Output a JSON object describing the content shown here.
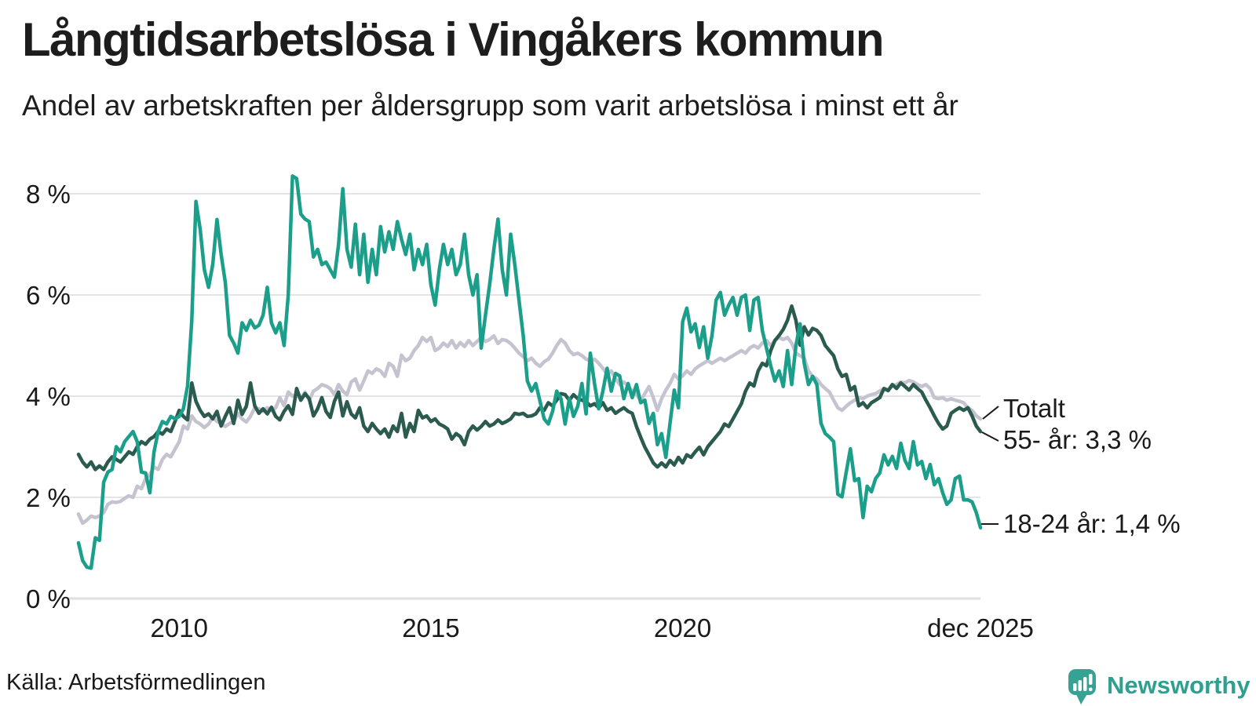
{
  "header": {
    "title": "Långtidsarbetslösa i Vingåkers kommun",
    "subtitle": "Andel av arbetskraften per åldersgrupp som varit arbetslösa i minst ett år"
  },
  "footer": {
    "source": "Källa: Arbetsförmedlingen",
    "brand": "Newsworthy"
  },
  "chart_data": {
    "type": "line",
    "title": "Långtidsarbetslösa i Vingåkers kommun",
    "subtitle": "Andel av arbetskraften per åldersgrupp som varit arbetslösa i minst ett år",
    "source": "Källa: Arbetsförmedlingen",
    "unit": "%",
    "frequency": "monthly",
    "x_start": "jan 2008",
    "x_end": "dec 2025",
    "ylim": [
      0,
      8.6
    ],
    "grid": true,
    "legend_position": "right-end-labels",
    "y_ticks": [
      {
        "value": 0,
        "label": "0 %"
      },
      {
        "value": 2,
        "label": "2 %"
      },
      {
        "value": 4,
        "label": "4 %"
      },
      {
        "value": 6,
        "label": "6 %"
      },
      {
        "value": 8,
        "label": "8 %"
      }
    ],
    "x_ticks": [
      {
        "month_index": 24,
        "label": "2010"
      },
      {
        "month_index": 84,
        "label": "2015"
      },
      {
        "month_index": 144,
        "label": "2020"
      },
      {
        "month_index": 215,
        "label": "dec 2025"
      }
    ],
    "series": [
      {
        "name": "Totalt",
        "end_label": "Totalt",
        "color": "#c6c3d1",
        "values": [
          1.67,
          1.49,
          1.55,
          1.63,
          1.6,
          1.63,
          1.7,
          1.86,
          1.91,
          1.9,
          1.92,
          1.98,
          2.03,
          2.0,
          2.22,
          2.17,
          2.37,
          2.45,
          2.6,
          2.55,
          2.75,
          2.85,
          2.8,
          2.95,
          3.1,
          3.41,
          3.35,
          3.61,
          3.5,
          3.45,
          3.38,
          3.45,
          3.58,
          3.5,
          3.46,
          3.4,
          3.46,
          3.5,
          3.66,
          3.55,
          3.49,
          3.6,
          3.77,
          3.75,
          3.7,
          3.77,
          3.72,
          3.77,
          3.97,
          3.81,
          4.08,
          4.0,
          4.02,
          3.95,
          4.08,
          3.92,
          4.1,
          4.15,
          4.23,
          4.2,
          4.15,
          4.03,
          4.23,
          4.1,
          4.03,
          4.28,
          4.34,
          4.12,
          4.3,
          4.5,
          4.45,
          4.54,
          4.5,
          4.39,
          4.65,
          4.59,
          4.39,
          4.81,
          4.7,
          4.75,
          4.9,
          5.0,
          5.16,
          5.08,
          5.16,
          4.9,
          4.95,
          5.05,
          4.98,
          5.1,
          4.95,
          5.06,
          4.98,
          5.1,
          5.0,
          5.08,
          5.16,
          5.08,
          5.12,
          5.19,
          5.04,
          5.12,
          5.1,
          5.04,
          4.95,
          4.85,
          4.78,
          4.7,
          4.75,
          4.65,
          4.59,
          4.68,
          4.73,
          4.85,
          5.0,
          5.12,
          5.05,
          4.9,
          4.82,
          4.85,
          4.8,
          4.73,
          4.7,
          4.73,
          4.65,
          4.55,
          4.43,
          4.5,
          4.35,
          4.23,
          4.28,
          4.2,
          4.1,
          4.03,
          3.92,
          4.05,
          4.19,
          3.97,
          3.72,
          3.95,
          4.12,
          4.25,
          4.43,
          4.34,
          4.4,
          4.5,
          4.43,
          4.54,
          4.6,
          4.65,
          4.7,
          4.65,
          4.7,
          4.75,
          4.7,
          4.75,
          4.8,
          4.85,
          4.9,
          4.85,
          4.95,
          5.0,
          4.95,
          5.05,
          5.1,
          5.0,
          5.1,
          5.16,
          5.12,
          5.16,
          5.05,
          4.85,
          4.8,
          4.75,
          4.5,
          4.39,
          4.34,
          4.23,
          4.15,
          4.08,
          3.92,
          3.77,
          3.72,
          3.8,
          3.87,
          3.92,
          3.97,
          3.95,
          4.0,
          4.03,
          4.05,
          4.1,
          4.15,
          4.12,
          4.2,
          4.23,
          4.28,
          4.26,
          4.31,
          4.28,
          4.23,
          4.19,
          4.23,
          4.15,
          3.97,
          3.95,
          3.97,
          3.92,
          3.95,
          3.92,
          3.9,
          3.87,
          3.77,
          3.72,
          3.61,
          3.55
        ]
      },
      {
        "name": "55- år",
        "end_label": "55- år: 3,3 %",
        "color": "#2b5a4e",
        "values": [
          2.85,
          2.7,
          2.6,
          2.7,
          2.55,
          2.62,
          2.55,
          2.7,
          2.8,
          2.75,
          2.7,
          2.8,
          2.9,
          2.85,
          3.0,
          3.1,
          3.05,
          3.15,
          3.2,
          3.3,
          3.25,
          3.35,
          3.3,
          3.5,
          3.72,
          3.6,
          3.53,
          4.26,
          3.9,
          3.72,
          3.6,
          3.65,
          3.55,
          3.7,
          3.41,
          3.6,
          3.77,
          3.46,
          3.92,
          3.64,
          3.8,
          4.26,
          3.81,
          3.66,
          3.75,
          3.65,
          3.78,
          3.6,
          3.53,
          3.7,
          3.81,
          3.64,
          4.15,
          3.92,
          4.05,
          3.95,
          3.61,
          3.75,
          3.97,
          3.7,
          3.58,
          3.9,
          4.08,
          3.61,
          3.89,
          3.65,
          3.57,
          3.77,
          3.41,
          3.3,
          3.46,
          3.35,
          3.26,
          3.35,
          3.19,
          3.41,
          3.3,
          3.66,
          3.19,
          3.46,
          3.3,
          3.72,
          3.57,
          3.61,
          3.5,
          3.55,
          3.45,
          3.41,
          3.35,
          3.15,
          3.26,
          3.2,
          3.04,
          3.3,
          3.41,
          3.33,
          3.4,
          3.5,
          3.41,
          3.45,
          3.53,
          3.46,
          3.5,
          3.55,
          3.66,
          3.64,
          3.66,
          3.6,
          3.61,
          3.65,
          3.77,
          3.72,
          3.87,
          3.81,
          3.92,
          4.05,
          4.03,
          3.92,
          4.03,
          3.95,
          3.92,
          3.89,
          3.81,
          3.85,
          3.77,
          3.87,
          3.72,
          3.77,
          3.66,
          3.72,
          3.77,
          3.7,
          3.66,
          3.4,
          3.19,
          2.99,
          2.84,
          2.68,
          2.6,
          2.68,
          2.6,
          2.73,
          2.64,
          2.79,
          2.68,
          2.84,
          2.79,
          2.9,
          2.99,
          2.84,
          3.0,
          3.1,
          3.2,
          3.3,
          3.45,
          3.4,
          3.55,
          3.7,
          3.85,
          4.1,
          4.26,
          4.2,
          4.5,
          4.65,
          4.6,
          4.9,
          5.1,
          5.2,
          5.32,
          5.5,
          5.78,
          5.5,
          5.01,
          5.37,
          5.21,
          5.34,
          5.3,
          5.2,
          5.0,
          4.9,
          4.8,
          4.54,
          4.39,
          4.43,
          4.12,
          4.19,
          3.81,
          3.87,
          3.77,
          3.87,
          3.92,
          3.97,
          4.15,
          4.11,
          4.23,
          4.15,
          4.26,
          4.19,
          4.12,
          4.23,
          4.15,
          4.08,
          3.92,
          3.77,
          3.61,
          3.46,
          3.35,
          3.41,
          3.66,
          3.72,
          3.77,
          3.72,
          3.77,
          3.61,
          3.41,
          3.3
        ]
      },
      {
        "name": "18-24 år",
        "end_label": "18-24 år: 1,4 %",
        "color": "#1b9e8a",
        "values": [
          1.1,
          0.75,
          0.62,
          0.6,
          1.2,
          1.15,
          2.3,
          2.5,
          2.55,
          3.0,
          2.9,
          3.1,
          3.2,
          3.3,
          3.1,
          2.5,
          2.48,
          2.09,
          2.9,
          3.3,
          3.5,
          3.45,
          3.6,
          3.55,
          3.6,
          3.75,
          4.2,
          5.5,
          7.85,
          7.3,
          6.5,
          6.15,
          6.6,
          7.49,
          6.8,
          6.25,
          5.2,
          5.05,
          4.85,
          5.45,
          5.3,
          5.5,
          5.35,
          5.4,
          5.6,
          6.15,
          5.45,
          5.25,
          5.45,
          5.0,
          6.0,
          8.35,
          8.3,
          7.6,
          7.5,
          7.45,
          6.75,
          6.9,
          6.6,
          6.65,
          6.5,
          6.35,
          7.0,
          8.1,
          6.9,
          6.55,
          7.4,
          6.4,
          7.2,
          6.25,
          6.9,
          6.4,
          7.35,
          6.85,
          7.25,
          6.9,
          7.45,
          7.1,
          6.8,
          7.2,
          6.5,
          6.9,
          6.6,
          7.0,
          6.2,
          5.8,
          6.5,
          7.0,
          6.6,
          6.9,
          6.4,
          6.6,
          7.2,
          6.4,
          6.0,
          6.4,
          4.95,
          5.6,
          6.2,
          6.9,
          7.5,
          6.5,
          6.0,
          7.2,
          6.6,
          5.9,
          5.2,
          4.3,
          4.1,
          4.25,
          3.9,
          3.55,
          3.45,
          3.7,
          4.1,
          3.95,
          3.45,
          3.95,
          3.6,
          3.8,
          4.25,
          3.65,
          4.85,
          4.25,
          3.75,
          4.1,
          4.55,
          4.1,
          4.45,
          4.4,
          3.95,
          4.25,
          3.97,
          4.23,
          3.87,
          3.92,
          3.46,
          3.66,
          3.04,
          3.26,
          2.79,
          3.46,
          4.12,
          3.77,
          5.47,
          5.74,
          5.27,
          5.43,
          4.96,
          5.37,
          4.75,
          5.2,
          5.9,
          6.05,
          5.6,
          5.8,
          5.95,
          5.6,
          5.95,
          6.0,
          5.3,
          5.9,
          5.95,
          5.3,
          4.95,
          4.6,
          4.3,
          4.5,
          4.19,
          4.9,
          4.23,
          5.0,
          5.43,
          4.65,
          4.23,
          4.39,
          4.23,
          3.46,
          3.26,
          3.19,
          3.1,
          2.06,
          2.01,
          2.5,
          2.96,
          2.33,
          2.37,
          1.6,
          2.22,
          2.11,
          2.37,
          2.48,
          2.84,
          2.64,
          2.81,
          2.57,
          3.07,
          2.73,
          2.57,
          3.1,
          2.64,
          2.71,
          2.37,
          2.65,
          2.25,
          2.37,
          2.09,
          1.86,
          1.95,
          2.37,
          2.42,
          1.95,
          1.95,
          1.91,
          1.7,
          1.4
        ]
      }
    ]
  }
}
